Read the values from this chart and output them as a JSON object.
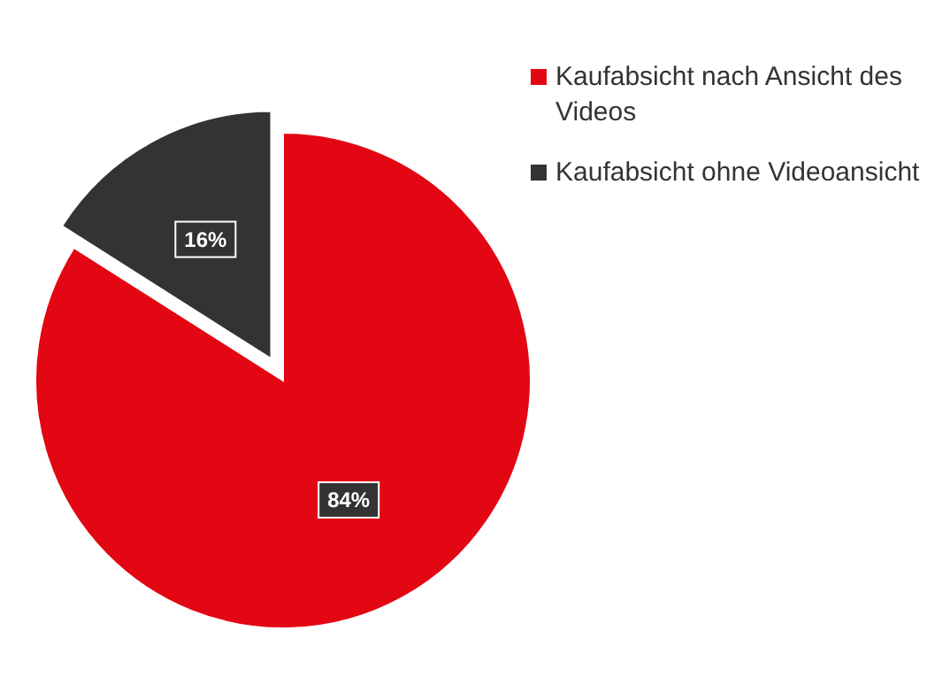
{
  "chart_data": {
    "type": "pie",
    "categories": [
      "Kaufabsicht nach Ansicht des Videos",
      "Kaufabsicht ohne Videoansicht"
    ],
    "values": [
      84,
      16
    ],
    "colors": [
      "#e30613",
      "#333333"
    ],
    "value_labels": [
      "84%",
      "16%"
    ],
    "legend": "top right"
  }
}
